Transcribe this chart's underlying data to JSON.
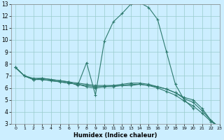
{
  "xlabel": "Humidex (Indice chaleur)",
  "xlim": [
    -0.5,
    23
  ],
  "ylim": [
    3,
    13
  ],
  "xticks": [
    0,
    1,
    2,
    3,
    4,
    5,
    6,
    7,
    8,
    9,
    10,
    11,
    12,
    13,
    14,
    15,
    16,
    17,
    18,
    19,
    20,
    21,
    22,
    23
  ],
  "yticks": [
    3,
    4,
    5,
    6,
    7,
    8,
    9,
    10,
    11,
    12,
    13
  ],
  "bg_color": "#cceeff",
  "line_color": "#2d7a6e",
  "grid_color": "#99cccc",
  "lines": [
    {
      "x": [
        0,
        1,
        2,
        3,
        4,
        5,
        6,
        7,
        8,
        9,
        10,
        11,
        12,
        13,
        14,
        15,
        16,
        17,
        18,
        19,
        20
      ],
      "y": [
        7.7,
        7.0,
        6.7,
        6.8,
        6.7,
        6.6,
        6.5,
        6.2,
        8.1,
        5.4,
        9.9,
        11.5,
        12.2,
        13.0,
        13.1,
        12.7,
        11.7,
        9.0,
        6.3,
        5.0,
        4.3
      ]
    },
    {
      "x": [
        0,
        1,
        2,
        3,
        4,
        5,
        6,
        7,
        8,
        9,
        10,
        11,
        12,
        13,
        14,
        15,
        16,
        17,
        18,
        19,
        20,
        21,
        22,
        23
      ],
      "y": [
        7.7,
        7.0,
        6.7,
        6.7,
        6.6,
        6.5,
        6.4,
        6.3,
        6.2,
        6.1,
        6.1,
        6.1,
        6.2,
        6.2,
        6.3,
        6.2,
        6.1,
        5.9,
        5.6,
        5.2,
        5.0,
        4.3,
        3.3,
        2.7
      ]
    },
    {
      "x": [
        0,
        1,
        2,
        3,
        4,
        5,
        6,
        7,
        8,
        9,
        10,
        11,
        12,
        13,
        14,
        15,
        16,
        17,
        18,
        19,
        20,
        21,
        22,
        23
      ],
      "y": [
        7.7,
        7.0,
        6.7,
        6.7,
        6.6,
        6.5,
        6.4,
        6.3,
        6.1,
        6.0,
        6.1,
        6.2,
        6.3,
        6.4,
        6.4,
        6.3,
        6.1,
        5.9,
        5.6,
        5.1,
        4.8,
        4.1,
        3.3,
        2.7
      ]
    },
    {
      "x": [
        0,
        1,
        2,
        3,
        4,
        5,
        6,
        7,
        8,
        9,
        10,
        11,
        12,
        13,
        14,
        15,
        16,
        17,
        18,
        19,
        20,
        21,
        22,
        23
      ],
      "y": [
        7.7,
        7.0,
        6.8,
        6.8,
        6.7,
        6.6,
        6.5,
        6.4,
        6.3,
        6.2,
        6.2,
        6.2,
        6.2,
        6.3,
        6.3,
        6.2,
        6.0,
        5.7,
        5.4,
        4.9,
        4.5,
        3.9,
        3.2,
        2.7
      ]
    }
  ]
}
